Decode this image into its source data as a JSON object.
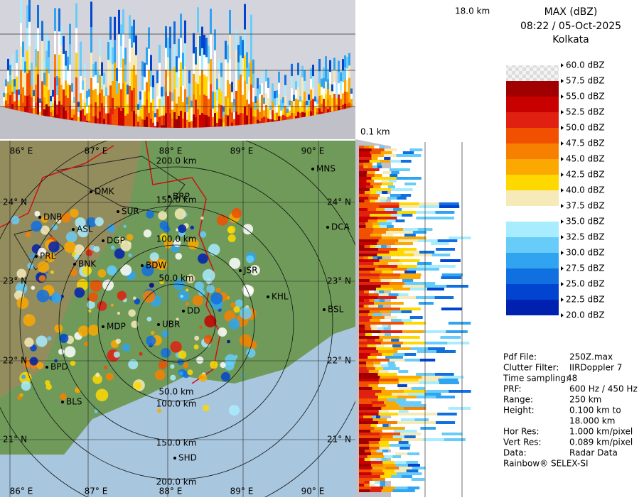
{
  "header": {
    "product": "MAX (dBZ)",
    "datetime": "08:22 / 05-Oct-2025",
    "site": "Kolkata"
  },
  "top_panel": {
    "height_label": "18.0 km"
  },
  "side_panel": {
    "height_label": "0.1 km"
  },
  "legend": {
    "labels": [
      "60.0 dBZ",
      "57.5 dBZ",
      "55.0 dBZ",
      "52.5 dBZ",
      "50.0 dBZ",
      "47.5 dBZ",
      "45.0 dBZ",
      "42.5 dBZ",
      "40.0 dBZ",
      "37.5 dBZ",
      "35.0 dBZ",
      "32.5 dBZ",
      "30.0 dBZ",
      "27.5 dBZ",
      "25.0 dBZ",
      "22.5 dBZ",
      "20.0 dBZ"
    ],
    "colors": [
      "#e4e4e4",
      "#a00000",
      "#c80000",
      "#e02010",
      "#f05000",
      "#f88000",
      "#fba800",
      "#ffd800",
      "#f6eab8",
      "#ffffff",
      "#a8ecff",
      "#68ccf8",
      "#30a4f0",
      "#1070e0",
      "#0044d0",
      "#0020b0",
      "#000090"
    ]
  },
  "info": {
    "rows": [
      [
        "Pdf File:",
        "250Z.max"
      ],
      [
        "Clutter Filter:",
        "IIRDoppler 7"
      ],
      [
        "Time sampling:",
        "48"
      ],
      [
        "PRF:",
        "600 Hz / 450 Hz"
      ],
      [
        "Range:",
        "250 km"
      ],
      [
        "Height:",
        "0.100 km to"
      ],
      [
        "",
        "18.000 km"
      ],
      [
        "Hor Res:",
        "1.000 km/pixel"
      ],
      [
        "Vert Res:",
        "0.089 km/pixel"
      ],
      [
        "Data:",
        "Radar Data"
      ]
    ],
    "footer": "Rainbow® SELEX-SI"
  },
  "map": {
    "lon_labels": [
      "86° E",
      "87° E",
      "88° E",
      "89° E",
      "90° E"
    ],
    "lat_labels": [
      "24° N",
      "23° N",
      "22° N",
      "21° N"
    ],
    "ring_labels": [
      "50.0 km",
      "100.0 km",
      "150.0 km",
      "200.0 km"
    ],
    "cities": [
      "MNS",
      "DMK",
      "BRP",
      "SUR",
      "DNB",
      "ASL",
      "DGP",
      "DCA",
      "PRL",
      "BNK",
      "BDW",
      "JSR",
      "KHL",
      "BSL",
      "DD",
      "MDP",
      "UBR",
      "BPD",
      "BLS",
      "SHD"
    ]
  }
}
